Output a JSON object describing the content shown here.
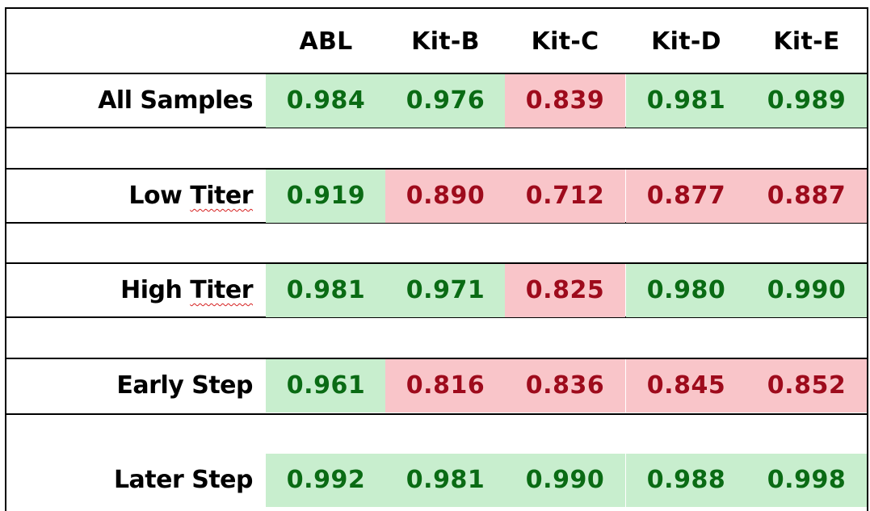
{
  "table": {
    "headers": [
      "ABL",
      "Kit-B",
      "Kit-C",
      "Kit-D",
      "Kit-E"
    ],
    "rows": [
      {
        "label_parts": [
          "All Samples"
        ],
        "values": [
          "0.984",
          "0.976",
          "0.839",
          "0.981",
          "0.989"
        ],
        "status": [
          "good",
          "good",
          "bad",
          "good",
          "good"
        ]
      },
      {
        "label_parts": [
          "Low ",
          "Titer"
        ],
        "values": [
          "0.919",
          "0.890",
          "0.712",
          "0.877",
          "0.887"
        ],
        "status": [
          "good",
          "bad",
          "bad",
          "bad",
          "bad"
        ]
      },
      {
        "label_parts": [
          "High ",
          "Titer"
        ],
        "values": [
          "0.981",
          "0.971",
          "0.825",
          "0.980",
          "0.990"
        ],
        "status": [
          "good",
          "good",
          "bad",
          "good",
          "good"
        ]
      },
      {
        "label_parts": [
          "Early Step"
        ],
        "values": [
          "0.961",
          "0.816",
          "0.836",
          "0.845",
          "0.852"
        ],
        "status": [
          "good",
          "bad",
          "bad",
          "bad",
          "bad"
        ]
      },
      {
        "label_parts": [
          "Later Step"
        ],
        "values": [
          "0.992",
          "0.981",
          "0.990",
          "0.988",
          "0.998"
        ],
        "status": [
          "good",
          "good",
          "good",
          "good",
          "good"
        ]
      }
    ]
  },
  "colors": {
    "good_fill": "#c8eece",
    "good_text": "#0a6b14",
    "bad_fill": "#f9c5c9",
    "bad_text": "#9e0b1c",
    "spellcheck_underline": "#d62020"
  }
}
